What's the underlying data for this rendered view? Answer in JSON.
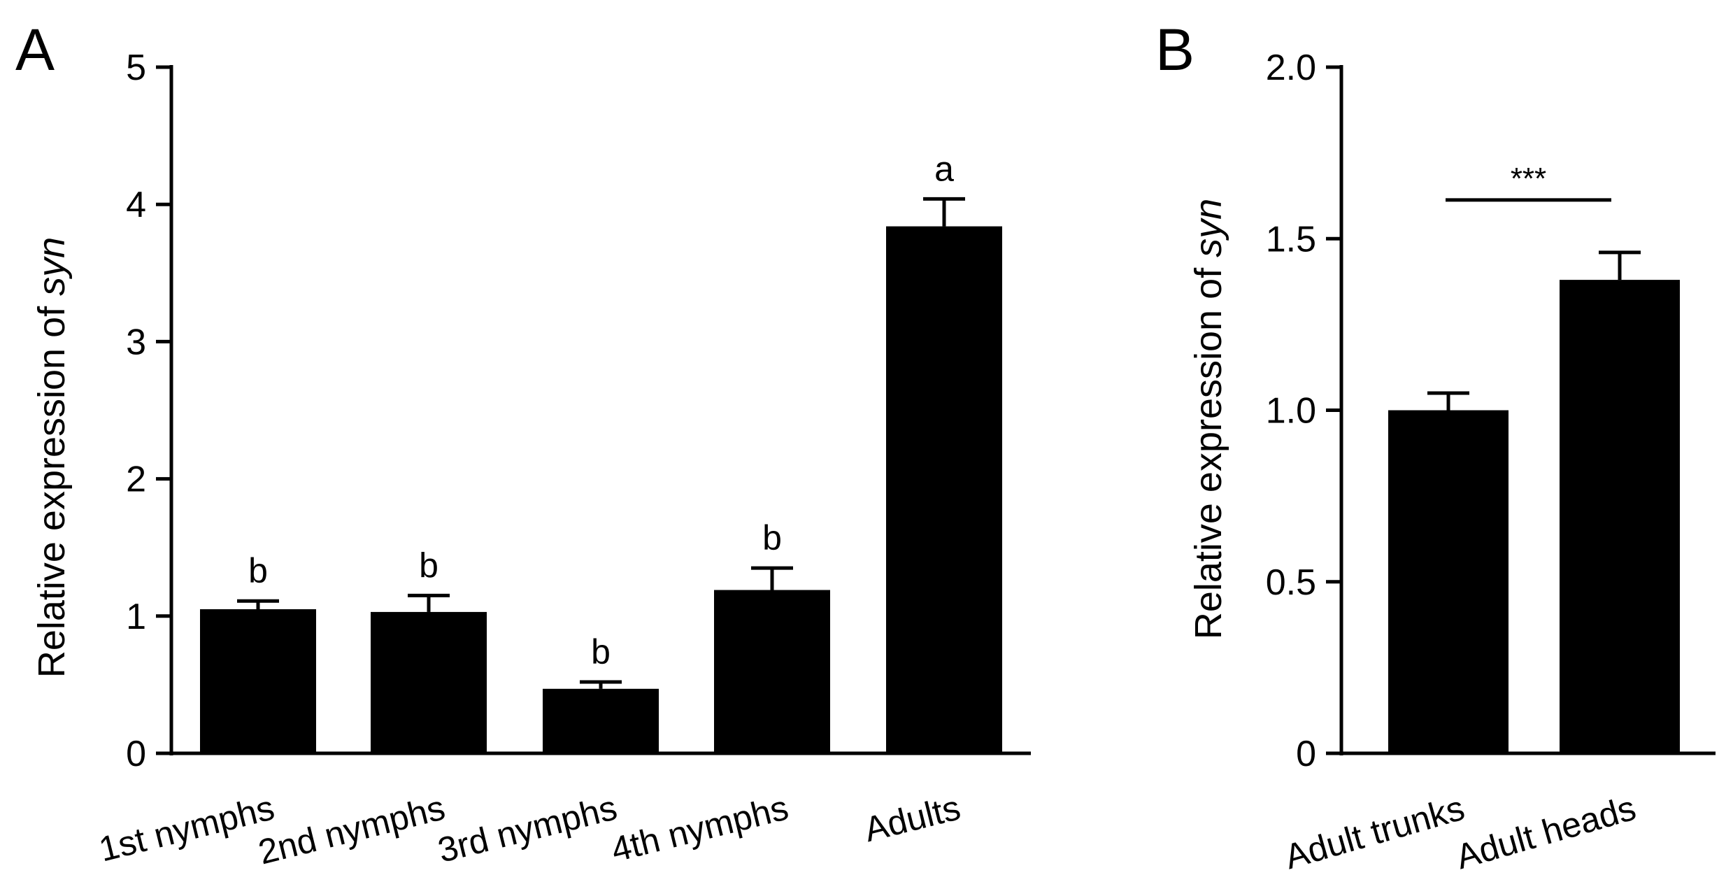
{
  "figure": {
    "bar_color": "#000000",
    "axis_color": "#000000",
    "background": "#ffffff"
  },
  "chart_data": [
    {
      "type": "bar",
      "panel_label": "A",
      "title": "",
      "xlabel": "",
      "ylabel_prefix": "Relative expression of ",
      "ylabel_gene": "syn",
      "categories": [
        "1st nymphs",
        "2nd nymphs",
        "3rd nymphs",
        "4th nymphs",
        "Adults"
      ],
      "values": [
        1.05,
        1.03,
        0.47,
        1.19,
        3.84
      ],
      "errors": [
        0.06,
        0.12,
        0.05,
        0.16,
        0.2
      ],
      "significance_letters": [
        "b",
        "b",
        "b",
        "b",
        "a"
      ],
      "ylim": [
        0,
        5
      ],
      "yticks": [
        "0",
        "1",
        "2",
        "3",
        "4",
        "5"
      ],
      "grid": false,
      "legend": "none"
    },
    {
      "type": "bar",
      "panel_label": "B",
      "title": "",
      "xlabel": "",
      "ylabel_prefix": "Relative expression of ",
      "ylabel_gene": "syn",
      "categories": [
        "Adult trunks",
        "Adult heads"
      ],
      "values": [
        1.0,
        1.38
      ],
      "errors": [
        0.05,
        0.08
      ],
      "significance": "***",
      "ylim": [
        0,
        2.0
      ],
      "yticks": [
        "0",
        "0.5",
        "1.0",
        "1.5",
        "2.0"
      ],
      "grid": false,
      "legend": "none"
    }
  ]
}
